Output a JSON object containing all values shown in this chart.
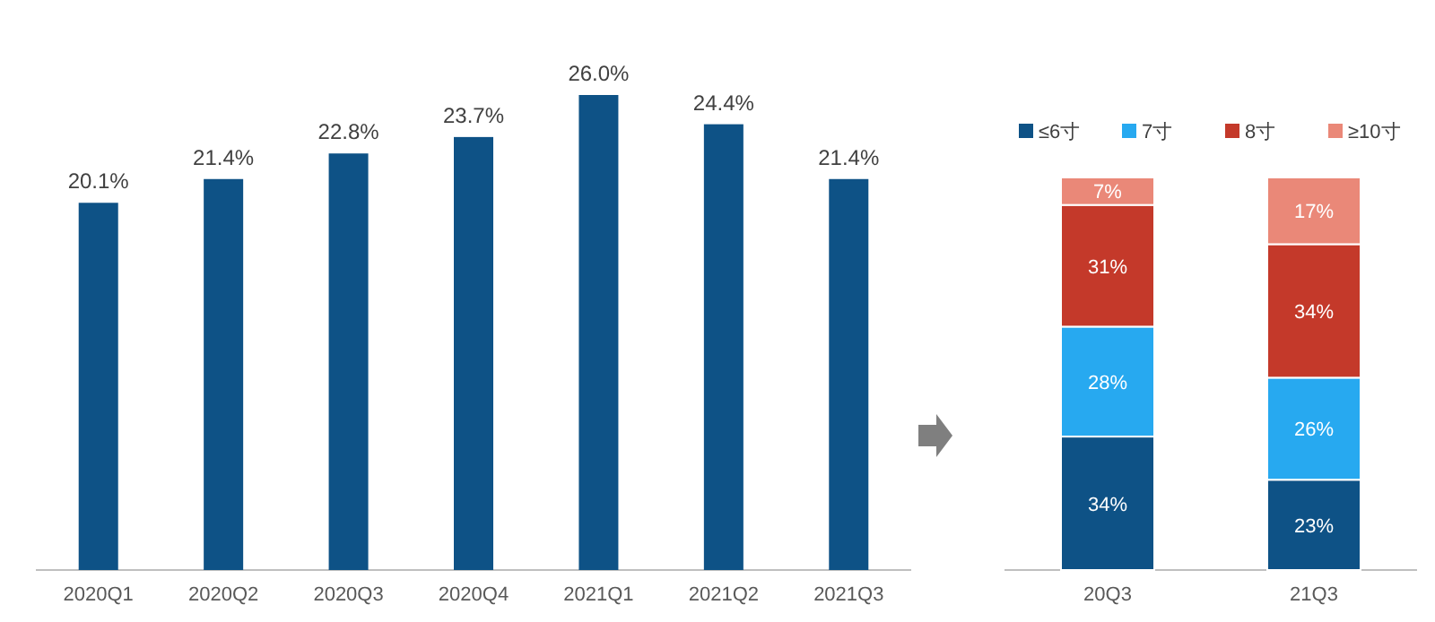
{
  "chart_data": [
    {
      "type": "bar",
      "categories": [
        "2020Q1",
        "2020Q2",
        "2020Q3",
        "2020Q4",
        "2021Q1",
        "2021Q2",
        "2021Q3"
      ],
      "values": [
        20.1,
        21.4,
        22.8,
        23.7,
        26.0,
        24.4,
        21.4
      ],
      "value_labels": [
        "20.1%",
        "21.4%",
        "22.8%",
        "23.7%",
        "26.0%",
        "24.4%",
        "21.4%"
      ],
      "color": "#0e5286",
      "legend": false
    },
    {
      "type": "bar",
      "stacked": true,
      "categories": [
        "20Q3",
        "21Q3"
      ],
      "ylim": [
        0,
        100
      ],
      "legend": "top",
      "series": [
        {
          "name": "≤6寸",
          "color": "#0e5286",
          "values": [
            34,
            23
          ],
          "value_labels": [
            "34%",
            "23%"
          ]
        },
        {
          "name": "7寸",
          "color": "#27a9f0",
          "values": [
            28,
            26
          ],
          "value_labels": [
            "28%",
            "26%"
          ]
        },
        {
          "name": "8寸",
          "color": "#c4392a",
          "values": [
            31,
            34
          ],
          "value_labels": [
            "31%",
            "34%"
          ]
        },
        {
          "name": "≥10寸",
          "color": "#ea8878",
          "values": [
            7,
            17
          ],
          "value_labels": [
            "7%",
            "17%"
          ]
        }
      ]
    }
  ]
}
